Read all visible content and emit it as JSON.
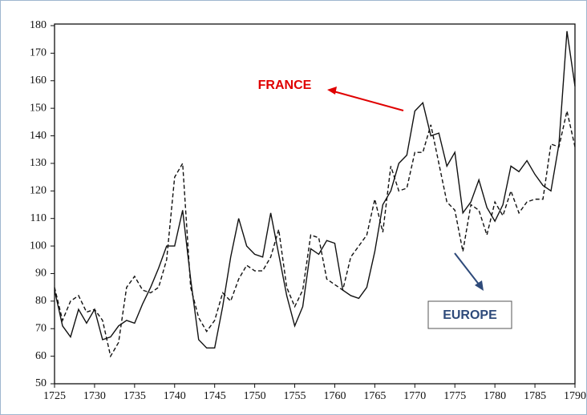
{
  "chart_data": {
    "type": "line",
    "x": [
      1725,
      1726,
      1727,
      1728,
      1729,
      1730,
      1731,
      1732,
      1733,
      1734,
      1735,
      1736,
      1737,
      1738,
      1739,
      1740,
      1741,
      1742,
      1743,
      1744,
      1745,
      1746,
      1747,
      1748,
      1749,
      1750,
      1751,
      1752,
      1753,
      1754,
      1755,
      1756,
      1757,
      1758,
      1759,
      1760,
      1761,
      1762,
      1763,
      1764,
      1765,
      1766,
      1767,
      1768,
      1769,
      1770,
      1771,
      1772,
      1773,
      1774,
      1775,
      1776,
      1777,
      1778,
      1779,
      1780,
      1781,
      1782,
      1783,
      1784,
      1785,
      1786,
      1787,
      1788,
      1789,
      1790
    ],
    "series": [
      {
        "name": "FRANCE",
        "color": "#111111",
        "line_style": "solid",
        "label_color": "#e00000",
        "values": [
          84,
          71,
          67,
          77,
          72,
          77,
          66,
          67,
          71,
          73,
          72,
          79,
          85,
          92,
          100,
          100,
          113,
          88,
          66,
          63,
          63,
          78,
          96,
          110,
          100,
          97,
          96,
          112,
          97,
          82,
          71,
          78,
          99,
          97,
          102,
          101,
          84,
          82,
          81,
          85,
          98,
          115,
          120,
          130,
          133,
          149,
          152,
          140,
          141,
          129,
          134,
          112,
          116,
          124,
          114,
          109,
          115,
          129,
          127,
          131,
          126,
          122,
          120,
          137,
          178,
          158
        ]
      },
      {
        "name": "EUROPE",
        "color": "#111111",
        "line_style": "dashed",
        "label_color": "#2e4a7a",
        "values": [
          85,
          73,
          80,
          82,
          76,
          77,
          73,
          60,
          65,
          85,
          89,
          84,
          83,
          85,
          95,
          125,
          130,
          85,
          74,
          69,
          73,
          83,
          80,
          88,
          93,
          91,
          91,
          96,
          106,
          85,
          78,
          84,
          104,
          103,
          88,
          86,
          84,
          96,
          100,
          104,
          117,
          105,
          129,
          120,
          121,
          134,
          134,
          144,
          130,
          116,
          113,
          98,
          115,
          113,
          104,
          116,
          111,
          120,
          112,
          116,
          117,
          117,
          137,
          136,
          149,
          136
        ]
      }
    ],
    "xlim": [
      1725,
      1790
    ],
    "xticks": [
      1725,
      1730,
      1735,
      1740,
      1745,
      1750,
      1755,
      1760,
      1765,
      1770,
      1775,
      1780,
      1785,
      1790
    ],
    "ylim": [
      50,
      180
    ],
    "yticks": [
      50,
      60,
      70,
      80,
      90,
      100,
      110,
      120,
      130,
      140,
      150,
      160,
      170,
      180
    ]
  }
}
